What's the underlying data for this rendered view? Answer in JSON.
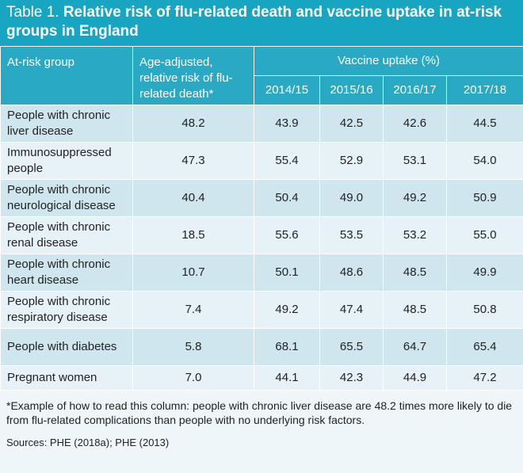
{
  "title": {
    "label": "Table 1.",
    "text": "Relative risk of flu-related death and vaccine uptake in at-risk groups in England"
  },
  "table": {
    "headers": [
      "At-risk group",
      "Age-adjusted, relative risk of flu-related death*",
      "Vaccine uptake (%)"
    ],
    "years": [
      "2014/15",
      "2015/16",
      "2016/17",
      "2017/18"
    ],
    "rows": [
      [
        "People with chronic liver disease",
        "48.2",
        "43.9",
        "42.5",
        "42.6",
        "44.5"
      ],
      [
        "Immunosuppressed people",
        "47.3",
        "55.4",
        "52.9",
        "53.1",
        "54.0"
      ],
      [
        "People with chronic neurological disease",
        "40.4",
        "50.4",
        "49.0",
        "49.2",
        "50.9"
      ],
      [
        "People with chronic renal disease",
        "18.5",
        "55.6",
        "53.5",
        "53.2",
        "55.0"
      ],
      [
        "People with chronic heart disease",
        "10.7",
        "50.1",
        "48.6",
        "48.5",
        "49.9"
      ],
      [
        "People with chronic respiratory disease",
        "7.4",
        "49.2",
        "47.4",
        "48.5",
        "50.8"
      ],
      [
        "People with diabetes",
        "5.8",
        "68.1",
        "65.5",
        "64.7",
        "65.4"
      ],
      [
        "Pregnant women",
        "7.0",
        "44.1",
        "42.3",
        "44.9",
        "47.2"
      ]
    ]
  },
  "footnote": "*Example of how to read this column: people with chronic liver disease are 48.2 times more likely to die from flu-related complications than people with no underlying risk factors.",
  "sources": "Sources: PHE (2018a); PHE (2013)"
}
